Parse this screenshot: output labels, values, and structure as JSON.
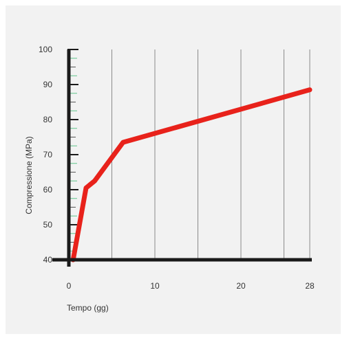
{
  "chart_data": {
    "type": "line",
    "title": "",
    "xlabel": "Tempo (gg)",
    "ylabel": "Compressione (MPa)",
    "xlim": [
      0,
      28
    ],
    "ylim": [
      40,
      100
    ],
    "x_ticks": [
      0,
      10,
      20,
      28
    ],
    "y_ticks": [
      40,
      50,
      60,
      70,
      80,
      90,
      100
    ],
    "grid": "vertical",
    "series": [
      {
        "color": "#e8221b",
        "x": [
          0.5,
          2,
          3,
          6.3,
          28
        ],
        "y": [
          40,
          60.5,
          62.5,
          73.5,
          88.5
        ]
      }
    ],
    "colors": {
      "axis": "#1a1a1a",
      "grid": "#8a8a8a",
      "minor_tick": "#5ec48a",
      "line": "#e8221b",
      "background": "#f2f2f2"
    }
  }
}
